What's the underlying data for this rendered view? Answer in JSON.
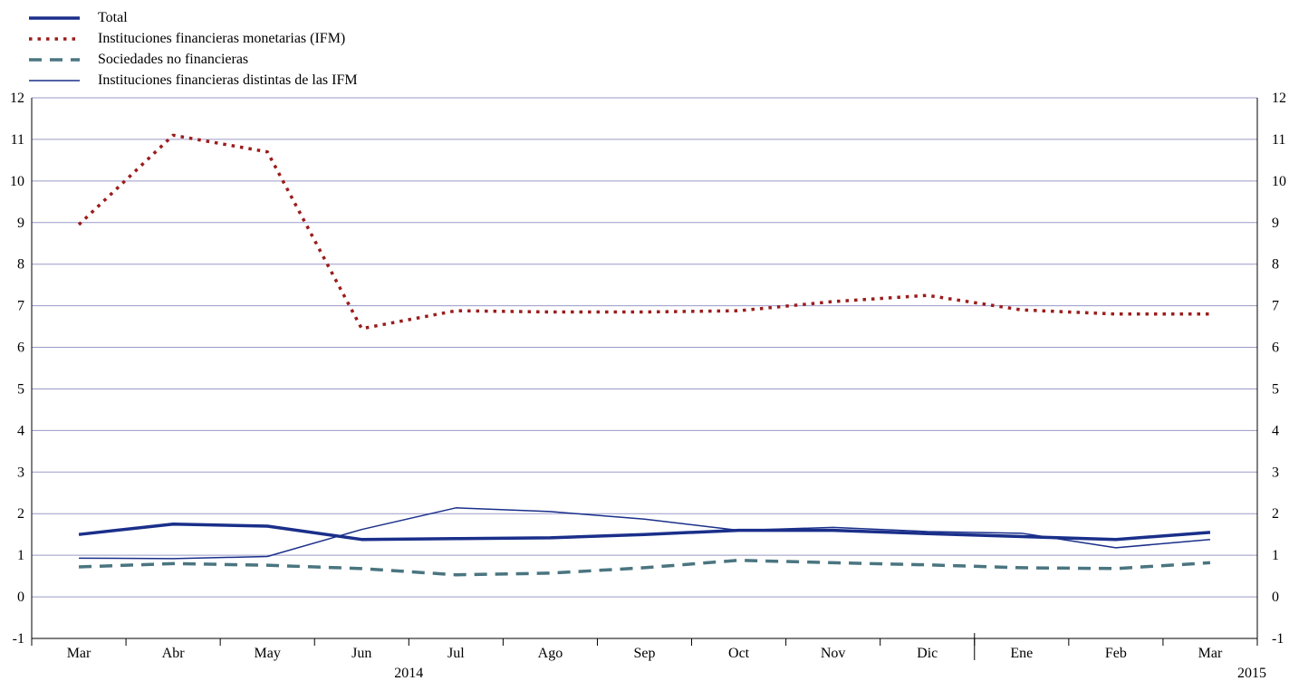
{
  "chart_data": {
    "type": "line",
    "categories": [
      "Mar",
      "Abr",
      "May",
      "Jun",
      "Jul",
      "Ago",
      "Sep",
      "Oct",
      "Nov",
      "Dic",
      "Ene",
      "Feb",
      "Mar"
    ],
    "year_labels": [
      "2014",
      "2015"
    ],
    "ylim": [
      -1,
      12
    ],
    "yticks": [
      "-1",
      "0",
      "1",
      "2",
      "3",
      "4",
      "5",
      "6",
      "7",
      "8",
      "9",
      "10",
      "11",
      "12"
    ],
    "grid": true,
    "legend_position": "top-left",
    "series": [
      {
        "name": "Total",
        "color": "#1a2f8a",
        "style": "thick-solid",
        "x": [
          0.5,
          1.5,
          2.5,
          3.5,
          4.5,
          5.5,
          6.5,
          7.5,
          8.5,
          9.5,
          10.5,
          11.5,
          12.5
        ],
        "values": [
          1.5,
          1.75,
          1.7,
          1.38,
          1.4,
          1.42,
          1.5,
          1.6,
          1.6,
          1.52,
          1.45,
          1.38,
          1.55
        ]
      },
      {
        "name": "Instituciones financieras monetarias (IFM)",
        "color": "#9b1c1c",
        "style": "dotted",
        "x": [
          0.5,
          1.5,
          2.5,
          3.5,
          4.5,
          5.5,
          6.5,
          7.5,
          8.5,
          9.5,
          10.5,
          11.5,
          12.5
        ],
        "values": [
          8.95,
          11.1,
          10.7,
          6.45,
          6.88,
          6.85,
          6.85,
          6.88,
          7.1,
          7.25,
          6.9,
          6.8,
          6.8
        ]
      },
      {
        "name": "Sociedades no financieras",
        "color": "#4a7580",
        "style": "dashed",
        "x": [
          0.5,
          1.5,
          2.5,
          3.5,
          4.5,
          5.5,
          6.5,
          7.5,
          8.5,
          9.5,
          10.5,
          11.5,
          12.5
        ],
        "values": [
          0.72,
          0.8,
          0.76,
          0.68,
          0.53,
          0.57,
          0.7,
          0.88,
          0.82,
          0.77,
          0.7,
          0.68,
          0.82
        ]
      },
      {
        "name": "Instituciones financieras distintas de las IFM",
        "color": "#1a2f8a",
        "style": "thin-solid",
        "x": [
          0.5,
          1.5,
          2.5,
          3.5,
          4.5,
          5.5,
          6.5,
          7.5,
          8.5,
          9.5,
          10.5,
          11.5,
          12.5
        ],
        "values": [
          0.93,
          0.92,
          0.97,
          1.62,
          2.14,
          2.05,
          1.87,
          1.6,
          1.67,
          1.57,
          1.53,
          1.18,
          1.38
        ]
      }
    ]
  }
}
